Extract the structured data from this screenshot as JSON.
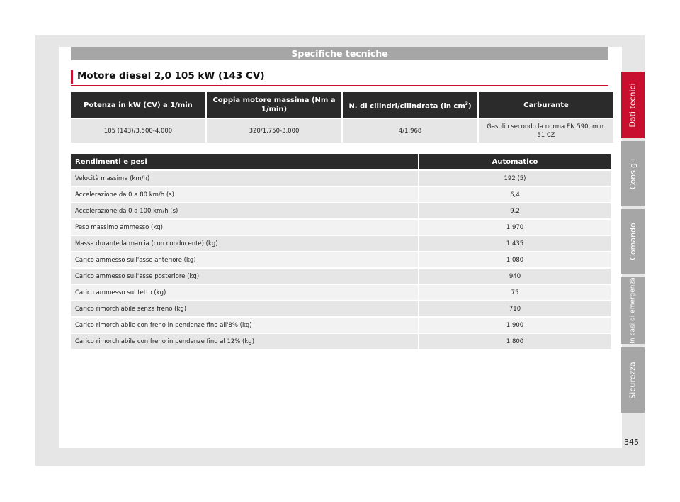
{
  "header": {
    "section": "Specifiche tecniche"
  },
  "title": "Motore diesel 2,0 105 kW (143 CV)",
  "engine_table": {
    "headers": [
      "Potenza in kW (CV) a 1/min",
      "Coppia motore massima (Nm a 1/min)",
      "N. di cilindri/cilindrata (in cm",
      "Carburante"
    ],
    "header_sup": "3",
    "header_close": ")",
    "row": [
      "105 (143)/3.500-4.000",
      "320/1.750-3.000",
      "4/1.968",
      "Gasolio secondo la norma EN 590, min. 51 CZ"
    ]
  },
  "perf_table": {
    "header_label": "Rendimenti e pesi",
    "header_value": "Automatico",
    "rows": [
      {
        "label": "Velocità massima (km/h)",
        "value": "192 (5)"
      },
      {
        "label": "Accelerazione da 0 a 80 km/h (s)",
        "value": "6,4"
      },
      {
        "label": "Accelerazione da 0 a 100 km/h (s)",
        "value": "9,2"
      },
      {
        "label": "Peso massimo ammesso (kg)",
        "value": "1.970"
      },
      {
        "label": "Massa durante la marcia (con conducente) (kg)",
        "value": "1.435"
      },
      {
        "label": "Carico ammesso sull'asse anteriore (kg)",
        "value": "1.080"
      },
      {
        "label": "Carico ammesso sull'asse posteriore (kg)",
        "value": "940"
      },
      {
        "label": "Carico ammesso sul tetto (kg)",
        "value": "75"
      },
      {
        "label": "Carico rimorchiabile senza freno (kg)",
        "value": "710"
      },
      {
        "label": "Carico rimorchiabile con freno in pendenze fino all'8% (kg)",
        "value": "1.900"
      },
      {
        "label": "Carico rimorchiabile con freno in pendenze fino al 12% (kg)",
        "value": "1.800"
      }
    ]
  },
  "side_tabs": [
    {
      "label": "Dati tecnici",
      "active": true
    },
    {
      "label": "Consigli",
      "active": false
    },
    {
      "label": "Comando",
      "active": false
    },
    {
      "label": "In casi di emergenza",
      "active": false
    },
    {
      "label": "Sicurezza",
      "active": false
    }
  ],
  "page_number": "345",
  "colors": {
    "accent": "#c8102e",
    "header_dark": "#2b2b2b",
    "tab_grey": "#a6a6a6"
  }
}
